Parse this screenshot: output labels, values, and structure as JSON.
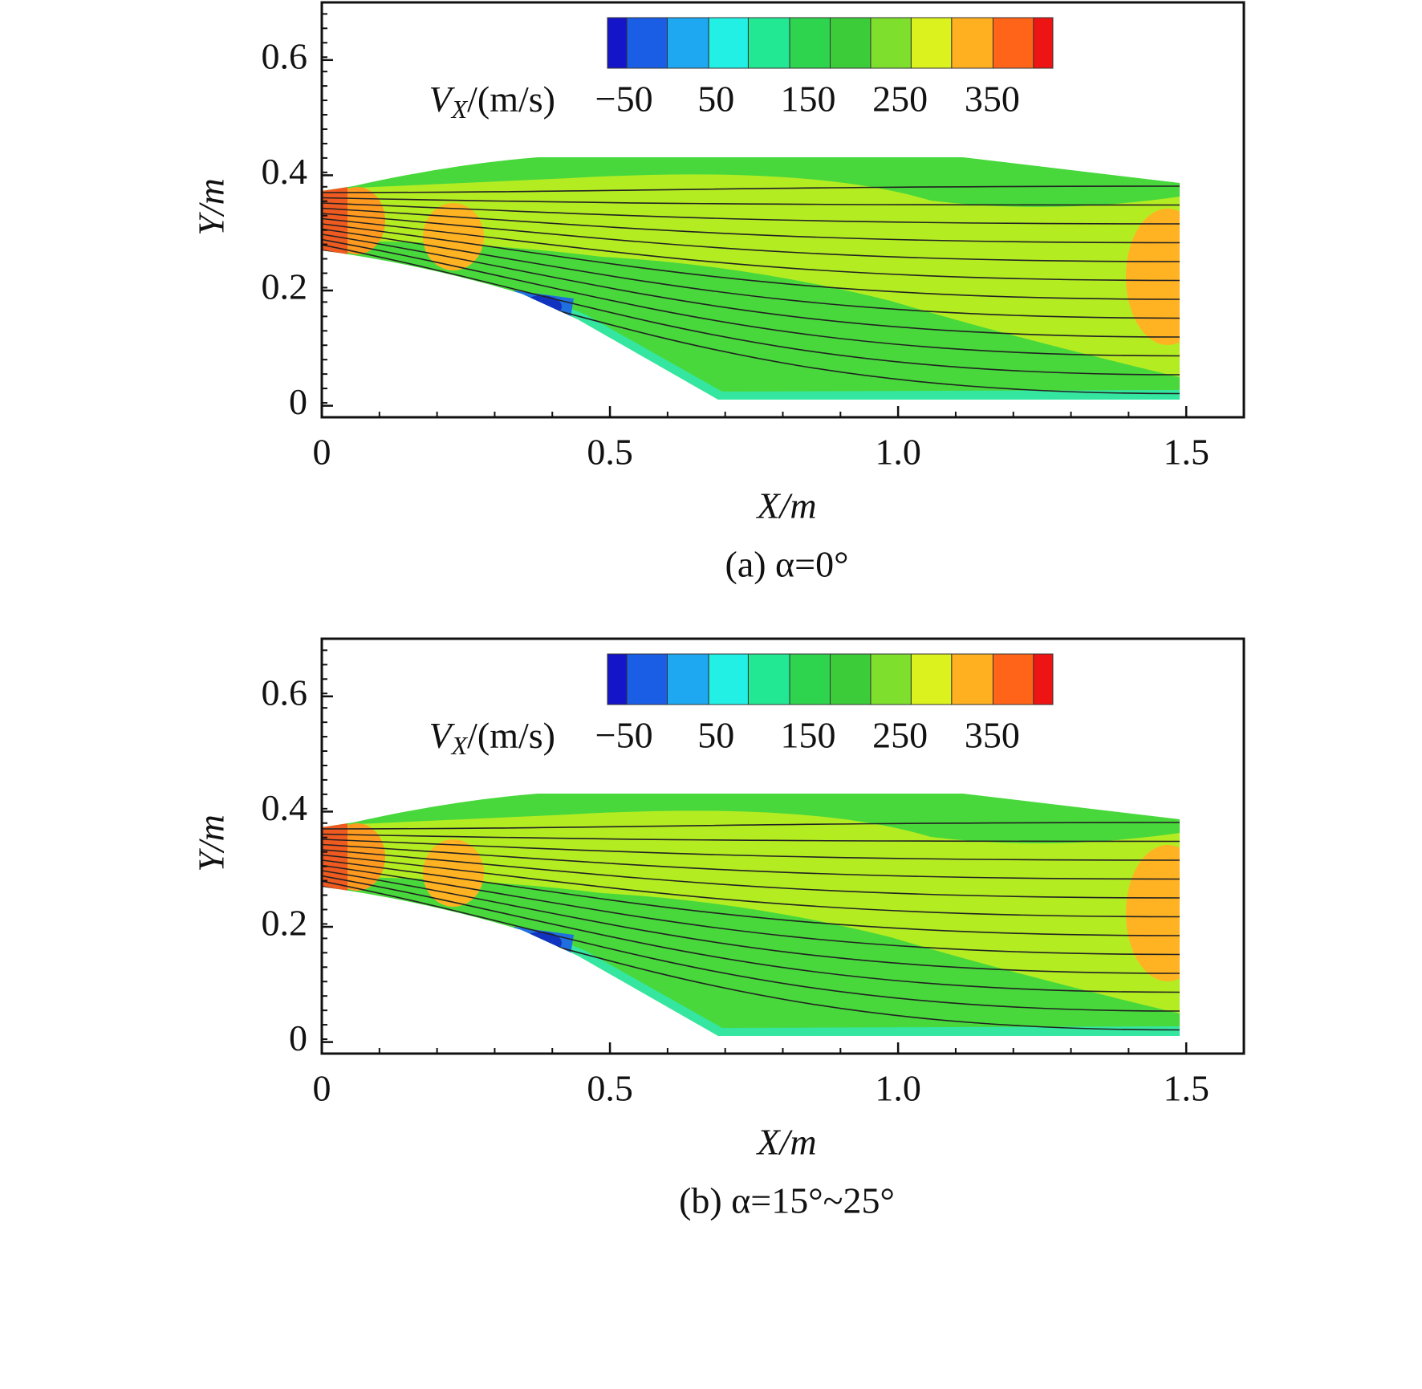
{
  "chart_data": [
    {
      "type": "contour",
      "title": "(a) α=0°",
      "xlabel": "X/m",
      "ylabel": "Y/m",
      "xlim": [
        0,
        1.6
      ],
      "ylim": [
        -0.02,
        0.7
      ],
      "xticks": [
        0,
        0.5,
        {
          "value": 1,
          "label": "1.0"
        },
        1.5
      ],
      "yticks": [
        0,
        0.2,
        0.4,
        0.6
      ],
      "xminor_step": 0.1,
      "yminor_step": 0.025,
      "colorbar": {
        "label_symbol": "V",
        "label_subscript": "X",
        "label_unit": "/(m/s)",
        "levels": [
          -68,
          -47,
          -3,
          42,
          85,
          130,
          174,
          218,
          262,
          306,
          351,
          395,
          416
        ],
        "colors": [
          "#1414c8",
          "#1a5ee6",
          "#1ea8f2",
          "#22f0e4",
          "#22e894",
          "#2fd44e",
          "#3ccc3a",
          "#7ee02c",
          "#dcf21e",
          "#ffb020",
          "#ff6418",
          "#ee1414"
        ],
        "ticks": [
          {
            "value": -50,
            "label": "−50"
          },
          50,
          150,
          250,
          350
        ]
      }
    },
    {
      "type": "contour",
      "title": "(b) α=15°~25°",
      "xlabel": "X/m",
      "ylabel": "Y/m",
      "xlim": [
        0,
        1.6
      ],
      "ylim": [
        -0.02,
        0.7
      ],
      "xticks": [
        0,
        0.5,
        {
          "value": 1,
          "label": "1.0"
        },
        1.5
      ],
      "yticks": [
        0,
        0.2,
        0.4,
        0.6
      ],
      "xminor_step": 0.1,
      "yminor_step": 0.025,
      "colorbar": {
        "label_symbol": "V",
        "label_subscript": "X",
        "label_unit": "/(m/s)",
        "levels": [
          -68,
          -47,
          -3,
          42,
          85,
          130,
          174,
          218,
          262,
          306,
          351,
          395,
          416
        ],
        "colors": [
          "#1414c8",
          "#1a5ee6",
          "#1ea8f2",
          "#22f0e4",
          "#22e894",
          "#2fd44e",
          "#3ccc3a",
          "#7ee02c",
          "#dcf21e",
          "#ffb020",
          "#ff6418",
          "#ee1414"
        ],
        "ticks": [
          {
            "value": -50,
            "label": "−50"
          },
          50,
          150,
          250,
          350
        ]
      }
    }
  ]
}
